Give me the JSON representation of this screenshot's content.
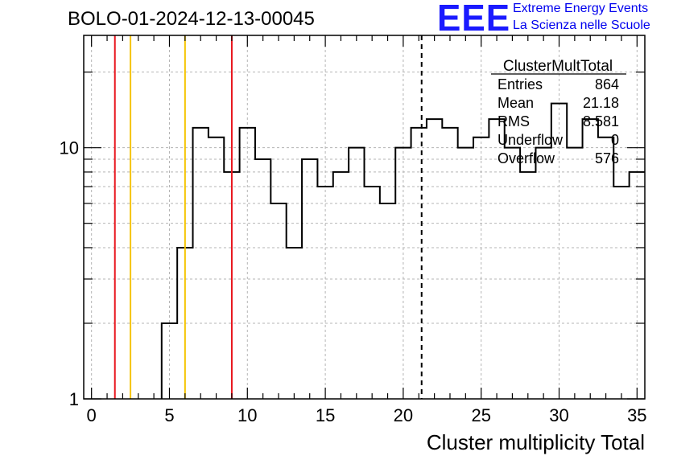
{
  "header": {
    "run_title": "BOLO-01-2024-12-13-00045",
    "logo_mark": "EEE",
    "logo_line1": "Extreme Energy Events",
    "logo_line2": "La Scienza nelle Scuole"
  },
  "stats_box": {
    "title": "ClusterMultTotal",
    "rows": [
      {
        "label": "Entries",
        "value": "864"
      },
      {
        "label": "Mean",
        "value": "21.18"
      },
      {
        "label": "RMS",
        "value": "8.581"
      },
      {
        "label": "Underflow",
        "value": "0"
      },
      {
        "label": "Overflow",
        "value": "576"
      }
    ]
  },
  "chart_data": {
    "type": "histogram",
    "title": "BOLO-01-2024-12-13-00045",
    "xlabel": "Cluster multiplicity Total",
    "ylabel": "",
    "xlim": [
      -0.5,
      35.5
    ],
    "ylim": [
      1,
      28
    ],
    "log_y": true,
    "grid": true,
    "bin_width": 1,
    "bin_centers": [
      0,
      1,
      2,
      3,
      4,
      5,
      6,
      7,
      8,
      9,
      10,
      11,
      12,
      13,
      14,
      15,
      16,
      17,
      18,
      19,
      20,
      21,
      22,
      23,
      24,
      25,
      26,
      27,
      28,
      29,
      30,
      31,
      32,
      33,
      34,
      35
    ],
    "counts": [
      0,
      0,
      0,
      0,
      0,
      2,
      4,
      12,
      11,
      8,
      12,
      9,
      6,
      4,
      9,
      7,
      8,
      10,
      7,
      6,
      10,
      12,
      13,
      12,
      10,
      11,
      13,
      10,
      8,
      10,
      15,
      10,
      13,
      11,
      7,
      8
    ],
    "x_ticks": [
      "0",
      "5",
      "10",
      "15",
      "20",
      "25",
      "30",
      "35"
    ],
    "y_ticks": [
      "1",
      "10"
    ],
    "vertical_lines": [
      {
        "x": 1.5,
        "color": "#e8141c",
        "style": "solid"
      },
      {
        "x": 2.5,
        "color": "#f5c400",
        "style": "solid"
      },
      {
        "x": 6.0,
        "color": "#f5c400",
        "style": "solid"
      },
      {
        "x": 9.0,
        "color": "#e8141c",
        "style": "solid"
      },
      {
        "x": 21.18,
        "color": "#000000",
        "style": "dashed"
      }
    ]
  }
}
